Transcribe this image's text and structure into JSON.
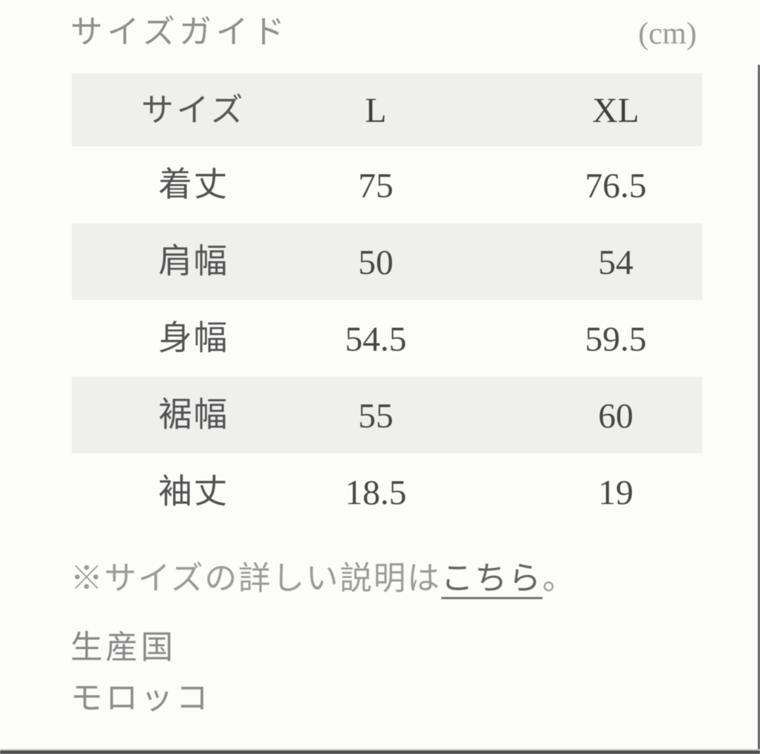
{
  "header": {
    "title": "サイズガイド",
    "unit": "(cm)"
  },
  "size_table": {
    "columns": [
      "サイズ",
      "L",
      "XL"
    ],
    "rows": [
      {
        "label": "着丈",
        "values": [
          "75",
          "76.5"
        ]
      },
      {
        "label": "肩幅",
        "values": [
          "50",
          "54"
        ]
      },
      {
        "label": "身幅",
        "values": [
          "54.5",
          "59.5"
        ]
      },
      {
        "label": "裾幅",
        "values": [
          "55",
          "60"
        ]
      },
      {
        "label": "袖丈",
        "values": [
          "18.5",
          "19"
        ]
      }
    ]
  },
  "note": {
    "prefix": "※サイズの詳しい説明は",
    "link_label": "こちら",
    "suffix": "。"
  },
  "production": {
    "label": "生産国",
    "country": "モロッコ"
  },
  "colors": {
    "background": "#fcfcfb",
    "stripe_gray": "#efefee",
    "title_gray": "#8f8f8f",
    "text_dark_gray": "#474747",
    "link_gray": "#646464",
    "edge_dark": "#4f4f4f"
  }
}
